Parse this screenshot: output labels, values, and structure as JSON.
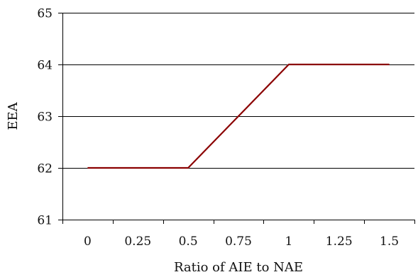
{
  "chart_data": {
    "type": "line",
    "xlabel": "Ratio of AIE to NAE",
    "ylabel": "EEA",
    "x_tick_labels": [
      "0",
      "0.25",
      "0.5",
      "0.75",
      "1",
      "1.25",
      "1.5"
    ],
    "y_tick_labels": [
      "61",
      "62",
      "63",
      "64",
      "65"
    ],
    "ylim": [
      61,
      65
    ],
    "grid": "horizontal",
    "legend": "none",
    "series": [
      {
        "x": [
          0,
          0.25,
          0.5,
          0.75,
          1,
          1.25,
          1.5
        ],
        "values": [
          62,
          62,
          62,
          63,
          64,
          64,
          64
        ],
        "color": "#8b0000"
      }
    ]
  }
}
